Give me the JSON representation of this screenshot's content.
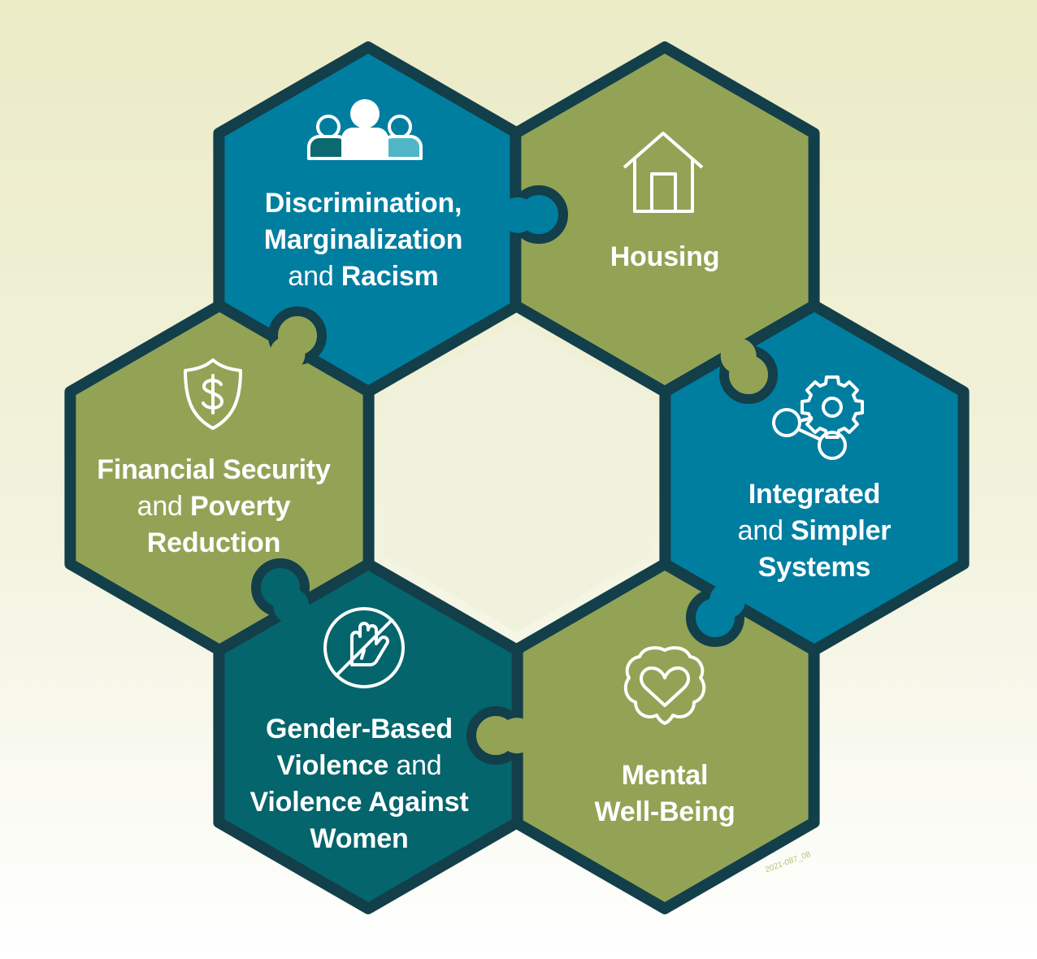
{
  "colors": {
    "outline": "#123f4a",
    "blue": "#007ea0",
    "olive": "#93a356",
    "teal": "#04656c",
    "center": "#f0f2dd",
    "person_left": "#0a6a70",
    "person_right": "#4fb6c8"
  },
  "hexes": [
    {
      "id": "discrimination",
      "color": "blue",
      "icon": "people-group-icon",
      "lines": [
        [
          {
            "t": "Discrimination,",
            "bold": true
          }
        ],
        [
          {
            "t": "Marginalization",
            "bold": true
          }
        ],
        [
          {
            "t": "and ",
            "bold": false
          },
          {
            "t": "Racism",
            "bold": true
          }
        ]
      ]
    },
    {
      "id": "housing",
      "color": "olive",
      "icon": "house-icon",
      "lines": [
        [
          {
            "t": "Housing",
            "bold": true
          }
        ]
      ]
    },
    {
      "id": "integrated",
      "color": "blue",
      "icon": "gear-network-icon",
      "lines": [
        [
          {
            "t": "Integrated",
            "bold": true
          }
        ],
        [
          {
            "t": "and ",
            "bold": false
          },
          {
            "t": "Simpler",
            "bold": true
          }
        ],
        [
          {
            "t": "Systems",
            "bold": true
          }
        ]
      ]
    },
    {
      "id": "mental",
      "color": "olive",
      "icon": "brain-heart-icon",
      "lines": [
        [
          {
            "t": "Mental",
            "bold": true
          }
        ],
        [
          {
            "t": "Well-Being",
            "bold": true
          }
        ]
      ]
    },
    {
      "id": "gender",
      "color": "teal",
      "icon": "stop-hand-icon",
      "lines": [
        [
          {
            "t": "Gender-Based",
            "bold": true
          }
        ],
        [
          {
            "t": "Violence ",
            "bold": true
          },
          {
            "t": "and",
            "bold": false
          }
        ],
        [
          {
            "t": "Violence Against",
            "bold": true
          }
        ],
        [
          {
            "t": "Women",
            "bold": true
          }
        ]
      ]
    },
    {
      "id": "financial",
      "color": "olive",
      "icon": "shield-dollar-icon",
      "lines": [
        [
          {
            "t": "Financial Security",
            "bold": true
          }
        ],
        [
          {
            "t": "and ",
            "bold": false
          },
          {
            "t": "Poverty",
            "bold": true
          }
        ],
        [
          {
            "t": "Reduction",
            "bold": true
          }
        ]
      ]
    }
  ],
  "watermark": "2021-087_08"
}
